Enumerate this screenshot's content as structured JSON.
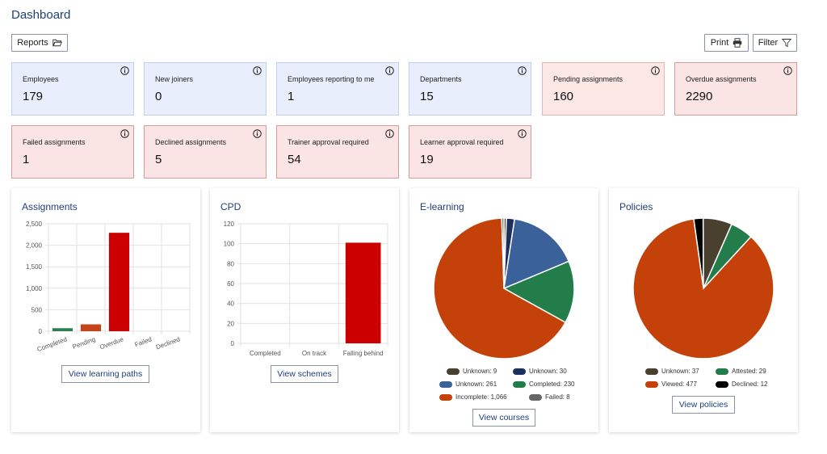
{
  "title": "Dashboard",
  "toolbar": {
    "reports_label": "Reports",
    "print_label": "Print",
    "filter_label": "Filter"
  },
  "tiles": [
    {
      "label": "Employees",
      "value": "179"
    },
    {
      "label": "New joiners",
      "value": "0"
    },
    {
      "label": "Employees reporting to me",
      "value": "1"
    },
    {
      "label": "Departments",
      "value": "15"
    },
    {
      "label": "Pending assignments",
      "value": "160"
    },
    {
      "label": "Overdue assignments",
      "value": "2290"
    },
    {
      "label": "Failed assignments",
      "value": "1"
    },
    {
      "label": "Declined assignments",
      "value": "5"
    },
    {
      "label": "Trainer approval required",
      "value": "54"
    },
    {
      "label": "Learner approval required",
      "value": "19"
    }
  ],
  "colors": {
    "blue_tile": "#e9eefc",
    "peach_tile": "#fbe7e3",
    "red_tile": "#fbe4e4",
    "title": "#1f3f7a"
  },
  "assignments": {
    "title": "Assignments",
    "button": "View learning paths"
  },
  "cpd": {
    "title": "CPD",
    "button": "View schemes"
  },
  "elearning": {
    "title": "E-learning",
    "button": "View courses",
    "legend": [
      "Unknown: 9",
      "Unknown: 30",
      "Unknown: 261",
      "Completed: 230",
      "Incomplete: 1,066",
      "Failed: 8"
    ]
  },
  "policies": {
    "title": "Policies",
    "button": "View policies",
    "legend": [
      "Unknown: 37",
      "Attested: 29",
      "Viewed: 477",
      "Declined: 12"
    ]
  },
  "chart_data": [
    {
      "type": "bar",
      "title": "Assignments",
      "categories": [
        "Completed",
        "Pending",
        "Overdue",
        "Failed",
        "Declined"
      ],
      "values": [
        70,
        160,
        2290,
        1,
        5
      ],
      "colors": [
        "#2e7d4f",
        "#c4441a",
        "#cc0000",
        "#cc0000",
        "#cc0000"
      ],
      "ylim": [
        0,
        2500
      ],
      "yticks": [
        "0",
        "500",
        "1,000",
        "1,500",
        "2,000",
        "2,500"
      ]
    },
    {
      "type": "bar",
      "title": "CPD",
      "categories": [
        "Completed",
        "On track",
        "Falling behind"
      ],
      "values": [
        0,
        0,
        101
      ],
      "colors": [
        "#cc0000",
        "#cc0000",
        "#cc0000"
      ],
      "ylim": [
        0,
        120
      ],
      "yticks": [
        "0",
        "20",
        "40",
        "60",
        "80",
        "100",
        "120"
      ]
    },
    {
      "type": "pie",
      "title": "E-learning",
      "series": [
        {
          "name": "Unknown",
          "value": 9,
          "color": "#4a4030"
        },
        {
          "name": "Unknown",
          "value": 30,
          "color": "#1d2f5e"
        },
        {
          "name": "Unknown",
          "value": 261,
          "color": "#3a6199"
        },
        {
          "name": "Completed",
          "value": 230,
          "color": "#237d4a"
        },
        {
          "name": "Incomplete",
          "value": 1066,
          "color": "#c4410a"
        },
        {
          "name": "Failed",
          "value": 8,
          "color": "#666666"
        }
      ]
    },
    {
      "type": "pie",
      "title": "Policies",
      "series": [
        {
          "name": "Declined",
          "value": 12,
          "color": "#000000"
        },
        {
          "name": "Unknown",
          "value": 37,
          "color": "#4a4030"
        },
        {
          "name": "Attested",
          "value": 29,
          "color": "#237d4a"
        },
        {
          "name": "Viewed",
          "value": 477,
          "color": "#c4410a"
        }
      ]
    }
  ]
}
